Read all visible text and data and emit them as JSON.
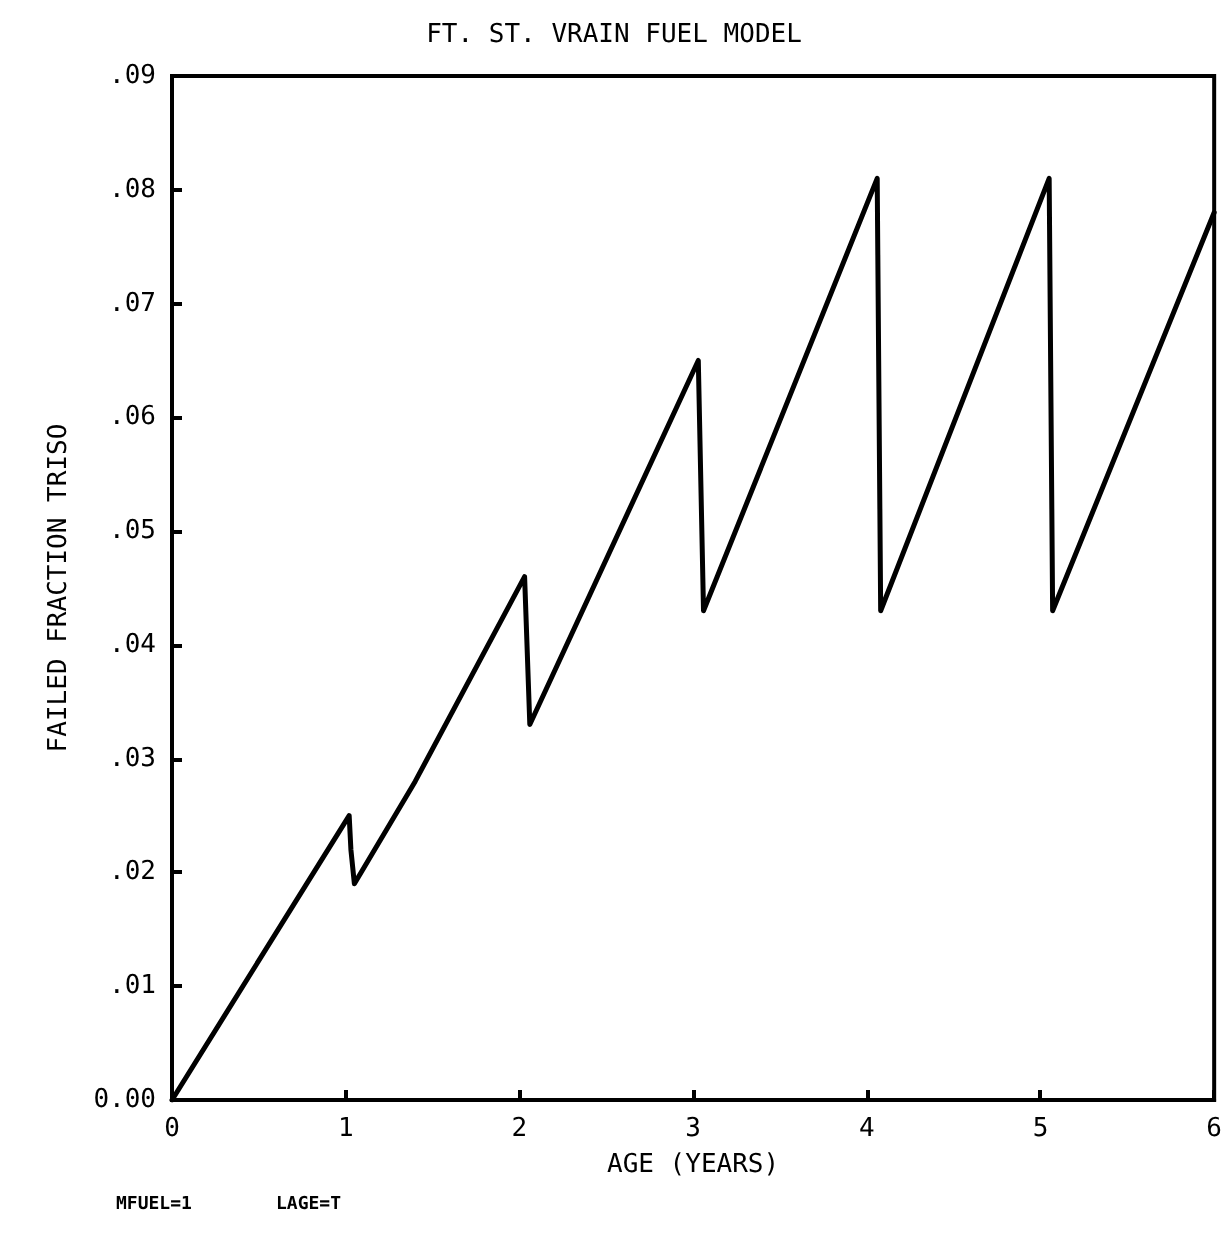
{
  "chart_data": {
    "type": "line",
    "title": "FT. ST. VRAIN FUEL MODEL",
    "xlabel": "AGE (YEARS)",
    "ylabel": "FAILED FRACTION TRISO",
    "x": [
      0,
      1.02,
      1.03,
      1.05,
      1.4,
      2.03,
      2.06,
      3.03,
      3.06,
      4.06,
      4.08,
      5.05,
      5.07,
      6
    ],
    "series": [
      {
        "color": "#000000",
        "values": [
          0,
          0.025,
          0.022,
          0.019,
          0.028,
          0.046,
          0.033,
          0.065,
          0.043,
          0.081,
          0.043,
          0.081,
          0.043,
          0.078
        ]
      }
    ],
    "xlim": [
      0,
      6
    ],
    "xticks": [
      0,
      1,
      2,
      3,
      4,
      5,
      6
    ],
    "ylim": [
      0,
      0.09
    ],
    "yticks": [
      {
        "value": 0,
        "label": "0.00"
      },
      {
        "value": 0.01,
        "label": ".01"
      },
      {
        "value": 0.02,
        "label": ".02"
      },
      {
        "value": 0.03,
        "label": ".03"
      },
      {
        "value": 0.04,
        "label": ".04"
      },
      {
        "value": 0.05,
        "label": ".05"
      },
      {
        "value": 0.06,
        "label": ".06"
      },
      {
        "value": 0.07,
        "label": ".07"
      },
      {
        "value": 0.08,
        "label": ".08"
      },
      {
        "value": 0.09,
        "label": ".09"
      }
    ],
    "grid": false,
    "marker": "none",
    "line_style": "solid",
    "annotations": [
      "MFUEL=1",
      "LAGE=T"
    ]
  }
}
